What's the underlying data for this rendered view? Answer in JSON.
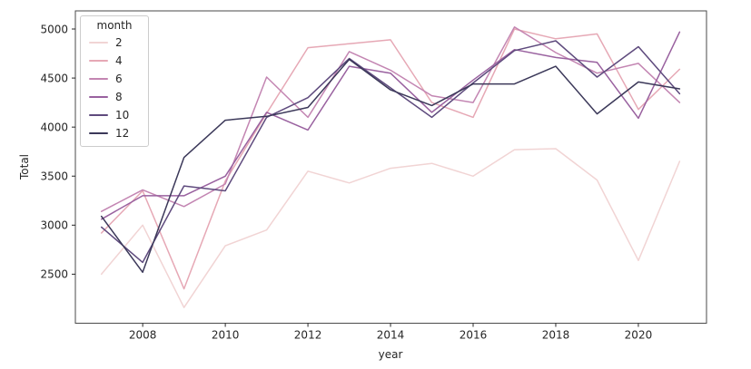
{
  "chart_data": {
    "type": "line",
    "title": "",
    "xlabel": "year",
    "ylabel": "Total",
    "x": [
      2007,
      2008,
      2009,
      2010,
      2011,
      2012,
      2013,
      2014,
      2015,
      2016,
      2017,
      2018,
      2019,
      2020,
      2021
    ],
    "xlim": [
      2006.37,
      2021.65
    ],
    "ylim": [
      2000,
      5185
    ],
    "xticks": [
      2008,
      2010,
      2012,
      2014,
      2016,
      2018,
      2020
    ],
    "yticks": [
      2500,
      3000,
      3500,
      4000,
      4500,
      5000
    ],
    "grid": false,
    "legend": {
      "title": "month",
      "position": "upper-left"
    },
    "colors": {
      "spine": "#4a4a4a",
      "tick": "#262626",
      "text": "#262626",
      "background": "#ffffff"
    },
    "series": [
      {
        "name": "2",
        "color": "#f1d4d4",
        "values": [
          2500,
          3000,
          2160,
          2790,
          2950,
          3550,
          3430,
          3580,
          3630,
          3500,
          3770,
          3780,
          3460,
          2640,
          3650
        ]
      },
      {
        "name": "4",
        "color": "#e6a8b5",
        "values": [
          2920,
          3350,
          2350,
          3450,
          4140,
          4810,
          4850,
          4890,
          4250,
          4100,
          5000,
          4900,
          4950,
          4180,
          4590
        ]
      },
      {
        "name": "6",
        "color": "#c385b2",
        "values": [
          3140,
          3360,
          3190,
          3420,
          4510,
          4100,
          4770,
          4580,
          4320,
          4250,
          5020,
          4760,
          4550,
          4650,
          4250
        ]
      },
      {
        "name": "8",
        "color": "#99619f",
        "values": [
          3060,
          3300,
          3300,
          3500,
          4150,
          3970,
          4620,
          4550,
          4150,
          4480,
          4790,
          4710,
          4660,
          4090,
          4970
        ]
      },
      {
        "name": "10",
        "color": "#5e4a7d",
        "values": [
          2980,
          2620,
          3400,
          3350,
          4100,
          4300,
          4700,
          4400,
          4100,
          4450,
          4780,
          4880,
          4510,
          4820,
          4340
        ]
      },
      {
        "name": "12",
        "color": "#3b3859",
        "values": [
          3090,
          2520,
          3690,
          4070,
          4110,
          4200,
          4690,
          4380,
          4220,
          4440,
          4440,
          4620,
          4135,
          4460,
          4390
        ]
      }
    ]
  }
}
